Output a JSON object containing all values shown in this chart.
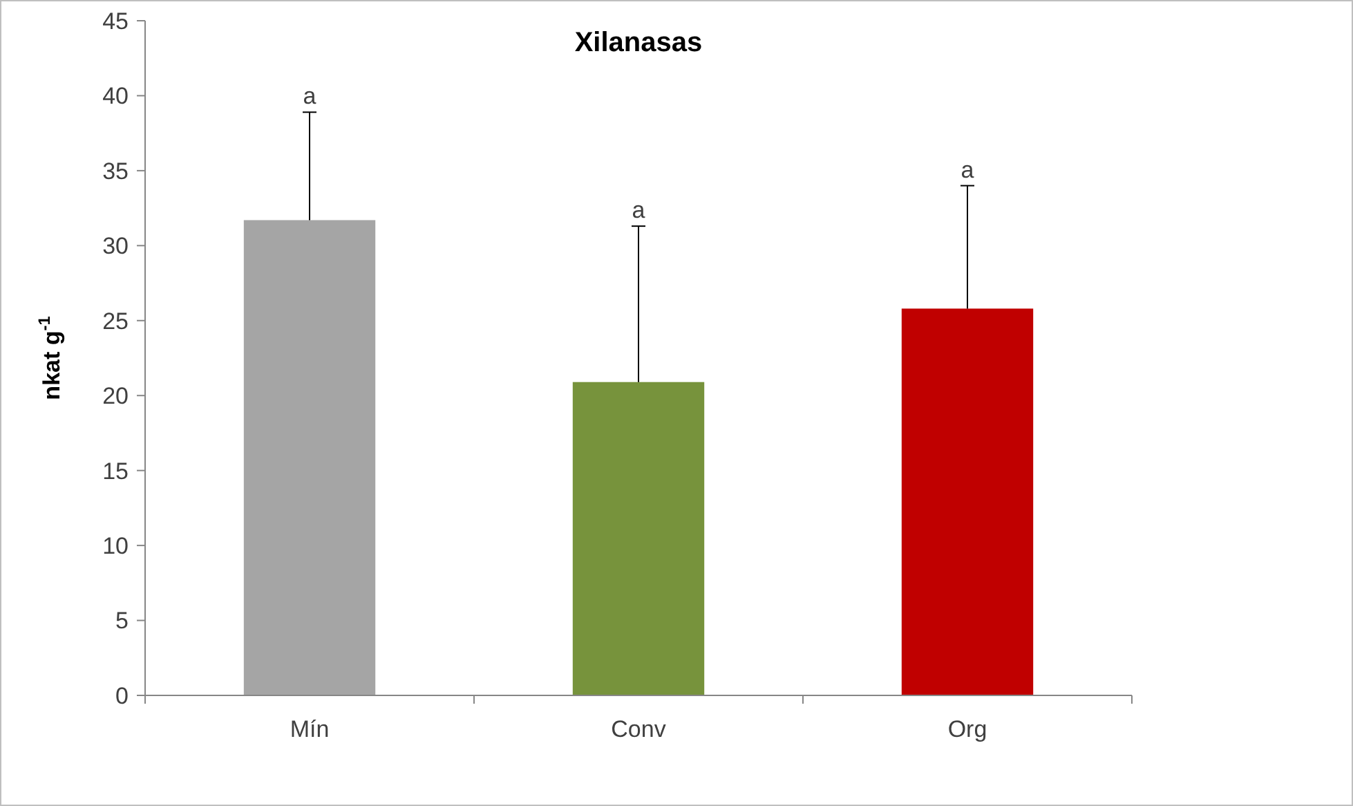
{
  "chart_data": {
    "type": "bar",
    "title": "Xilanasas",
    "ylabel": "nkat g$^{-1}$",
    "categories": [
      "Mín",
      "Conv",
      "Org"
    ],
    "values": [
      31.7,
      20.9,
      25.8
    ],
    "colors": [
      "#a5a5a5",
      "#77933c",
      "#c00000"
    ],
    "errors": [
      [
        31.7,
        38.9
      ],
      [
        20.9,
        31.3
      ],
      [
        25.8,
        34
      ]
    ],
    "ylim": [
      0,
      45
    ],
    "yticks": [
      0,
      5,
      10,
      15,
      20,
      25,
      30,
      35,
      40,
      45
    ],
    "annotations": [
      "a",
      "a",
      "a"
    ],
    "grid": false
  }
}
